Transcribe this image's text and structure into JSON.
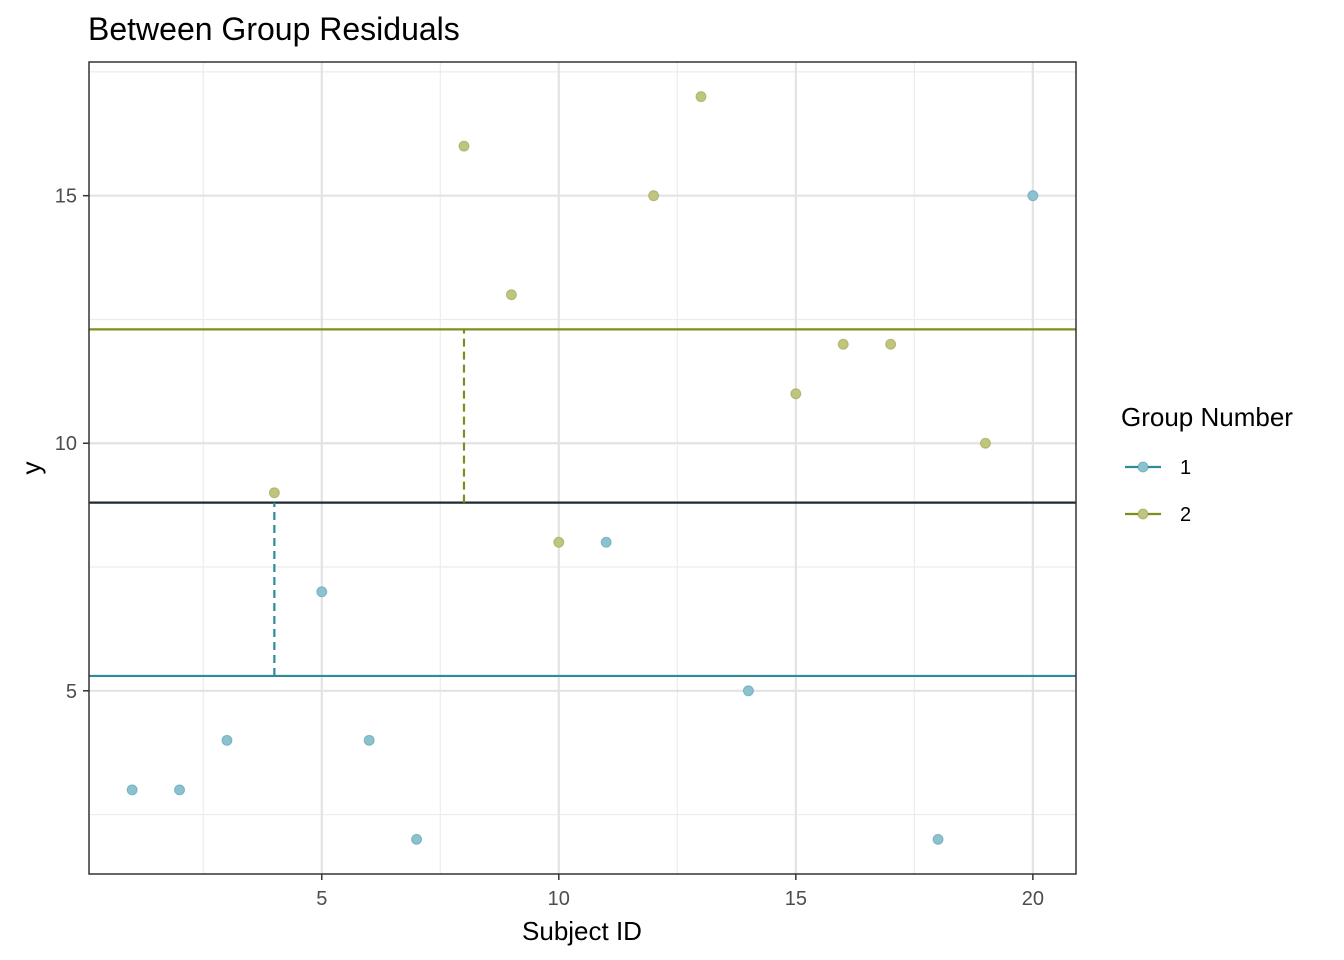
{
  "chart_data": {
    "type": "scatter",
    "title": "Between Group Residuals",
    "xlabel": "Subject ID",
    "ylabel": "y",
    "xlim": [
      0.09,
      20.91
    ],
    "ylim": [
      1.3,
      17.7
    ],
    "x_ticks": [
      5,
      10,
      15,
      20
    ],
    "y_ticks": [
      5,
      10,
      15
    ],
    "x_minor_grid": [
      2.5,
      7.5,
      12.5,
      17.5
    ],
    "y_minor_grid": [
      2.5,
      7.5,
      12.5,
      17.5
    ],
    "grid": true,
    "legend": {
      "title": "Group Number",
      "placement": "right",
      "entries": [
        "1",
        "2"
      ]
    },
    "series": [
      {
        "name": "1",
        "color": "#2f8a9b",
        "point_color": "#8cc2d0",
        "points": [
          {
            "x": 1,
            "y": 3
          },
          {
            "x": 2,
            "y": 3
          },
          {
            "x": 3,
            "y": 4
          },
          {
            "x": 5,
            "y": 7
          },
          {
            "x": 6,
            "y": 4
          },
          {
            "x": 7,
            "y": 2
          },
          {
            "x": 11,
            "y": 8
          },
          {
            "x": 14,
            "y": 5
          },
          {
            "x": 18,
            "y": 2
          },
          {
            "x": 20,
            "y": 15
          }
        ],
        "group_mean": 5.3
      },
      {
        "name": "2",
        "color": "#7f8c1e",
        "point_color": "#bfc47f",
        "points": [
          {
            "x": 4,
            "y": 9
          },
          {
            "x": 8,
            "y": 16
          },
          {
            "x": 9,
            "y": 13
          },
          {
            "x": 10,
            "y": 8
          },
          {
            "x": 12,
            "y": 15
          },
          {
            "x": 13,
            "y": 17
          },
          {
            "x": 15,
            "y": 11
          },
          {
            "x": 16,
            "y": 12
          },
          {
            "x": 17,
            "y": 12
          },
          {
            "x": 19,
            "y": 10
          }
        ],
        "group_mean": 12.3
      }
    ],
    "grand_mean": 8.8,
    "grand_mean_color": "#1f2a30",
    "residual_segments": [
      {
        "series": "1",
        "x": 4,
        "y_from": 5.3,
        "y_to": 8.8
      },
      {
        "series": "2",
        "x": 8,
        "y_from": 8.8,
        "y_to": 12.3
      }
    ]
  }
}
